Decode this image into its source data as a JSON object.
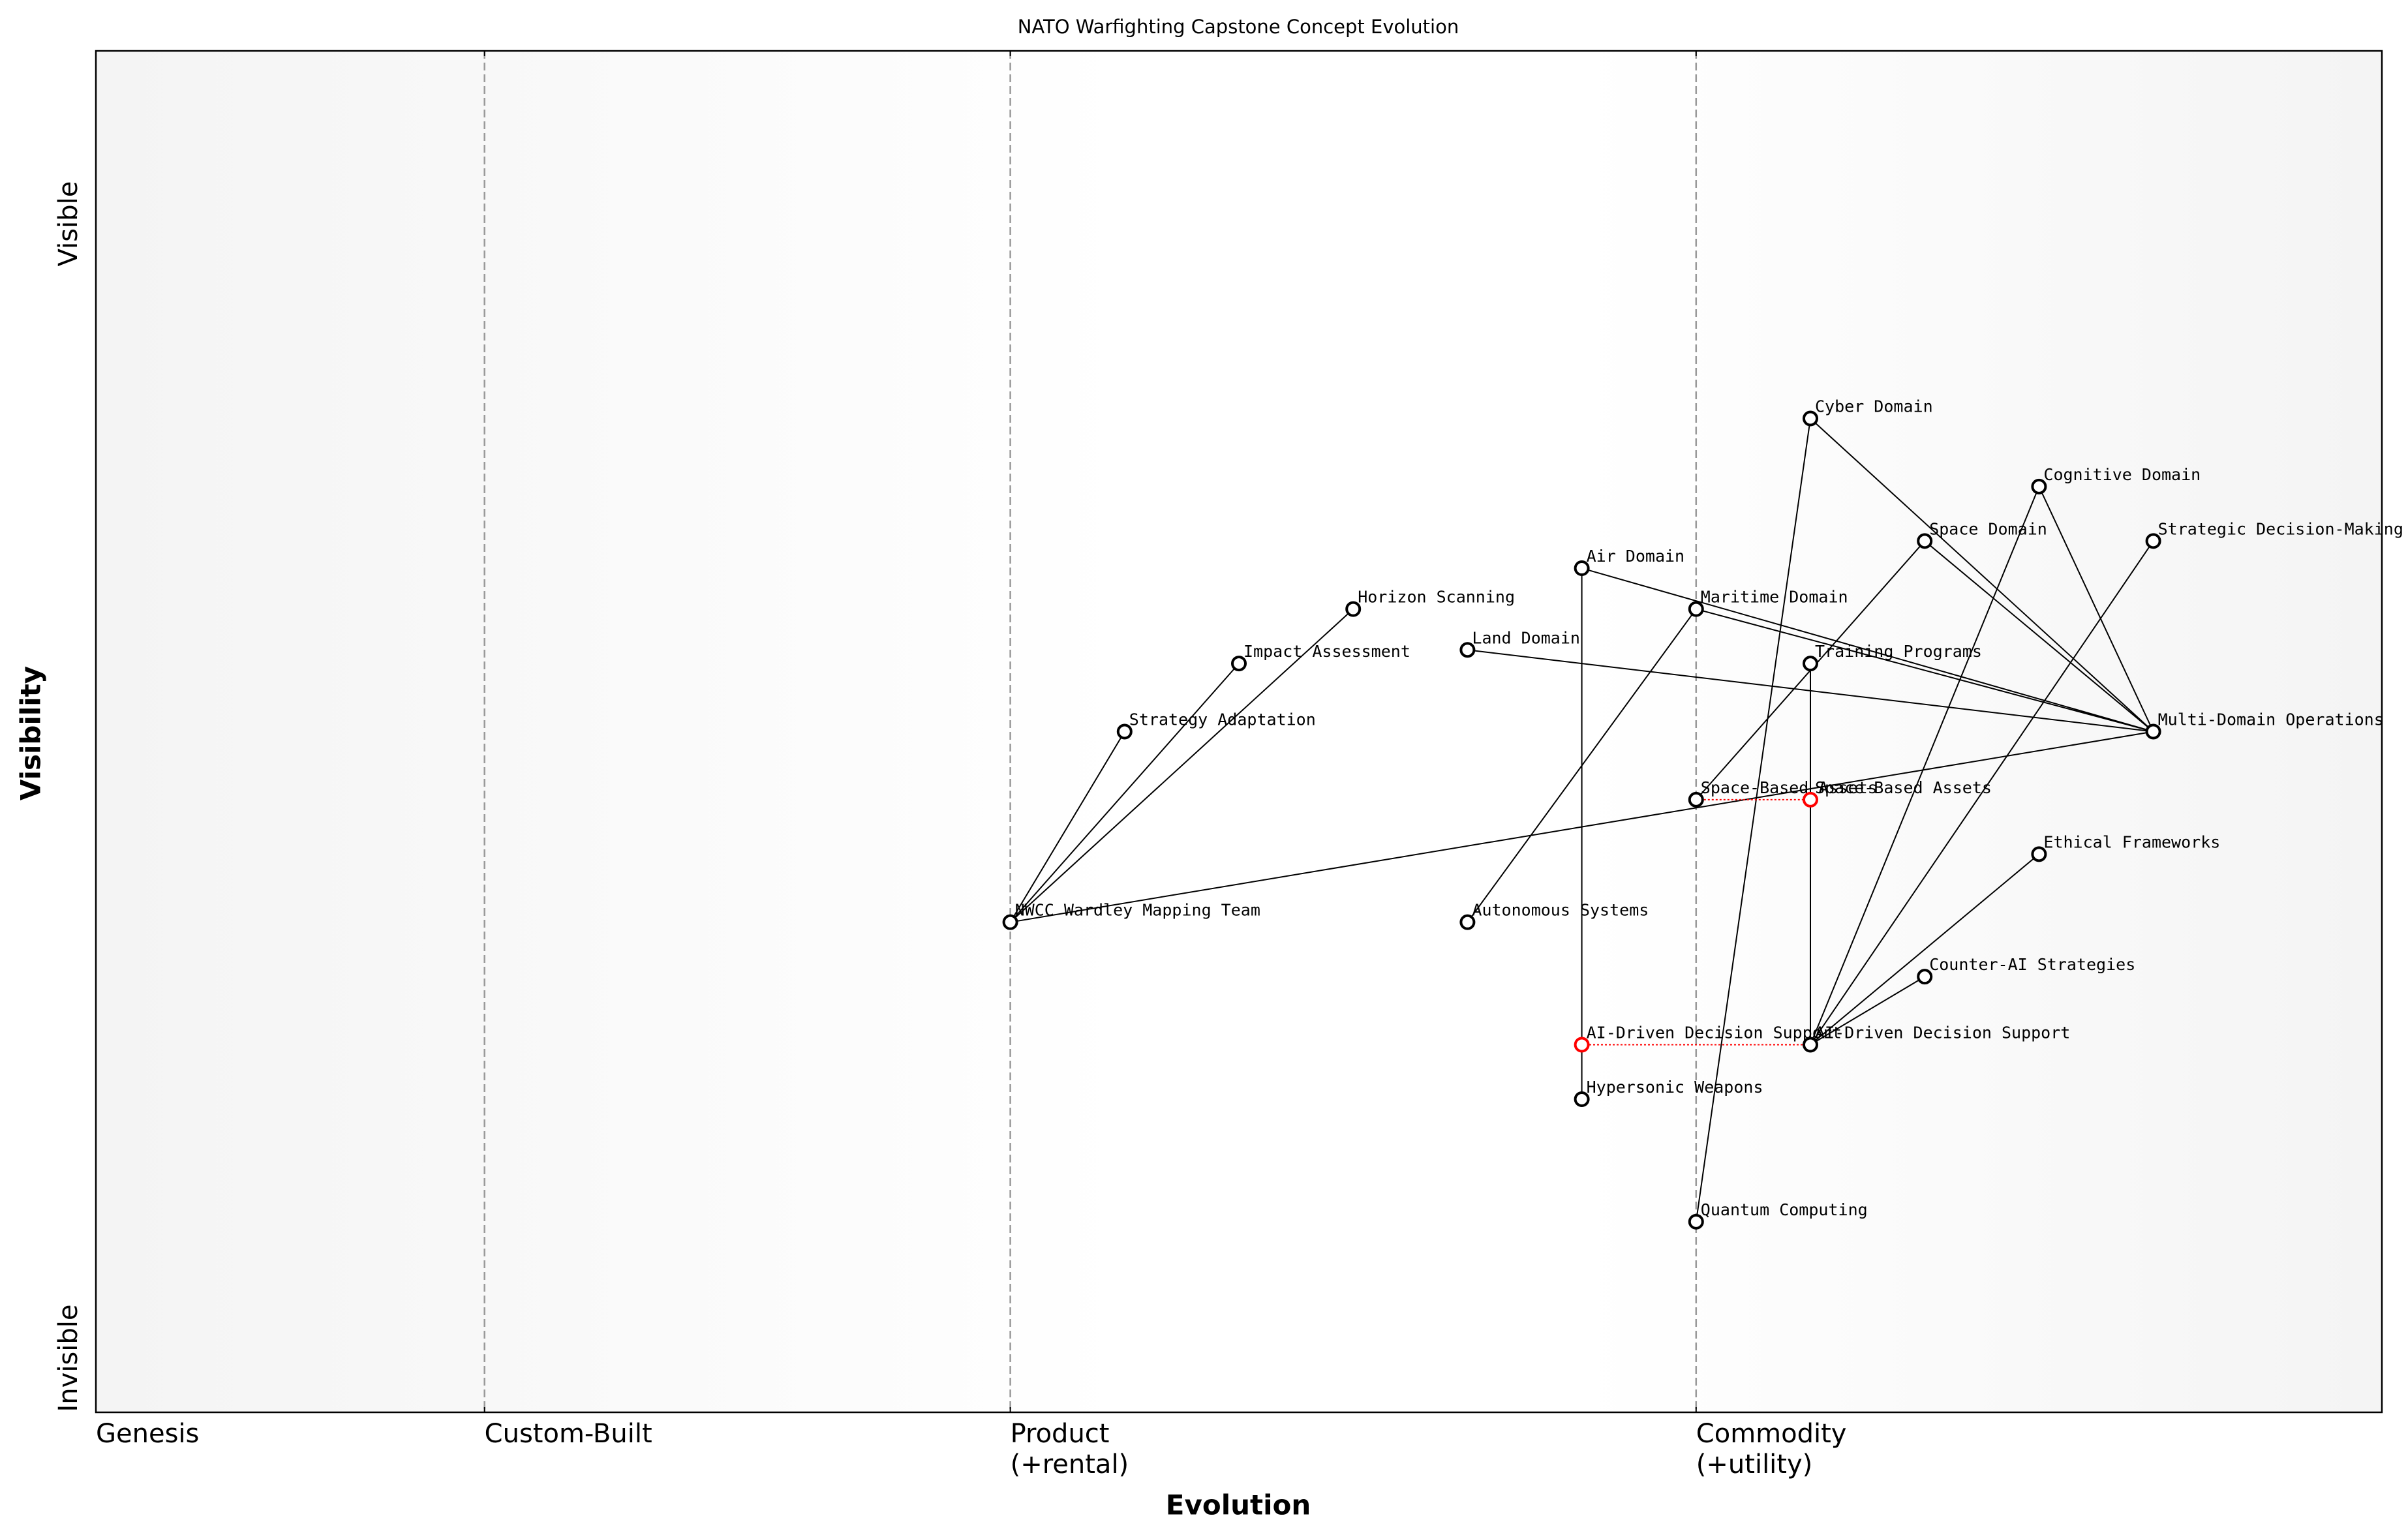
{
  "chart_data": {
    "type": "wardley",
    "title": "NATO Warfighting Capstone Concept Evolution",
    "x_label": "Evolution",
    "y_label": "Visibility",
    "y_labels": [
      "Visible",
      "Invisible"
    ],
    "xlim": [
      0,
      1
    ],
    "ylim": [
      0,
      1
    ],
    "xticks": [
      {
        "value": 0,
        "label": "Genesis"
      },
      {
        "value": 0.17,
        "label": "Custom-Built"
      },
      {
        "value": 0.4,
        "label": "Product\n(+rental)"
      },
      {
        "value": 0.7,
        "label": "Commodity\n(+utility)"
      }
    ],
    "nodes": [
      {
        "label": "Cyber Domain",
        "x": 0.75,
        "y": 0.73
      },
      {
        "label": "Cognitive Domain",
        "x": 0.85,
        "y": 0.68
      },
      {
        "label": "Space Domain",
        "x": 0.8,
        "y": 0.64
      },
      {
        "label": "Strategic Decision-Making",
        "x": 0.9,
        "y": 0.64
      },
      {
        "label": "Air Domain",
        "x": 0.65,
        "y": 0.62
      },
      {
        "label": "Maritime Domain",
        "x": 0.7,
        "y": 0.59
      },
      {
        "label": "Horizon Scanning",
        "x": 0.55,
        "y": 0.59
      },
      {
        "label": "Land Domain",
        "x": 0.6,
        "y": 0.56
      },
      {
        "label": "Impact Assessment",
        "x": 0.5,
        "y": 0.55
      },
      {
        "label": "Training Programs",
        "x": 0.75,
        "y": 0.55
      },
      {
        "label": "Strategy Adaptation",
        "x": 0.45,
        "y": 0.5
      },
      {
        "label": "Multi-Domain Operations",
        "x": 0.9,
        "y": 0.5
      },
      {
        "label": "Space-Based Assets",
        "x": 0.7,
        "y": 0.45
      },
      {
        "label": "Ethical Frameworks",
        "x": 0.85,
        "y": 0.41
      },
      {
        "label": "NWCC Wardley Mapping Team",
        "x": 0.4,
        "y": 0.36
      },
      {
        "label": "Autonomous Systems",
        "x": 0.6,
        "y": 0.36
      },
      {
        "label": "Counter-AI Strategies",
        "x": 0.8,
        "y": 0.32
      },
      {
        "label": "AI-Driven Decision Support",
        "x": 0.75,
        "y": 0.27
      },
      {
        "label": "Hypersonic Weapons",
        "x": 0.65,
        "y": 0.23
      },
      {
        "label": "Quantum Computing",
        "x": 0.7,
        "y": 0.14
      }
    ],
    "links": [
      [
        "Cyber Domain",
        "Quantum Computing"
      ],
      [
        "Cyber Domain",
        "Multi-Domain Operations"
      ],
      [
        "Cognitive Domain",
        "Multi-Domain Operations"
      ],
      [
        "Cognitive Domain",
        "AI-Driven Decision Support"
      ],
      [
        "Space Domain",
        "Multi-Domain Operations"
      ],
      [
        "Space Domain",
        "Space-Based Assets"
      ],
      [
        "Strategic Decision-Making",
        "AI-Driven Decision Support"
      ],
      [
        "Air Domain",
        "Multi-Domain Operations"
      ],
      [
        "Air Domain",
        "Hypersonic Weapons"
      ],
      [
        "Maritime Domain",
        "Multi-Domain Operations"
      ],
      [
        "Maritime Domain",
        "Autonomous Systems"
      ],
      [
        "Land Domain",
        "Multi-Domain Operations"
      ],
      [
        "Training Programs",
        "AI-Driven Decision Support"
      ],
      [
        "Multi-Domain Operations",
        "NWCC Wardley Mapping Team"
      ],
      [
        "NWCC Wardley Mapping Team",
        "Strategy Adaptation"
      ],
      [
        "NWCC Wardley Mapping Team",
        "Impact Assessment"
      ],
      [
        "NWCC Wardley Mapping Team",
        "Horizon Scanning"
      ],
      [
        "Ethical Frameworks",
        "AI-Driven Decision Support"
      ],
      [
        "Counter-AI Strategies",
        "AI-Driven Decision Support"
      ]
    ],
    "evolve": [
      {
        "component": "Space-Based Assets",
        "to": 0.75
      },
      {
        "component": "AI-Driven Decision Support",
        "to": 0.65
      }
    ],
    "node_color": "#000000",
    "evolve_color": "#ff0000"
  }
}
